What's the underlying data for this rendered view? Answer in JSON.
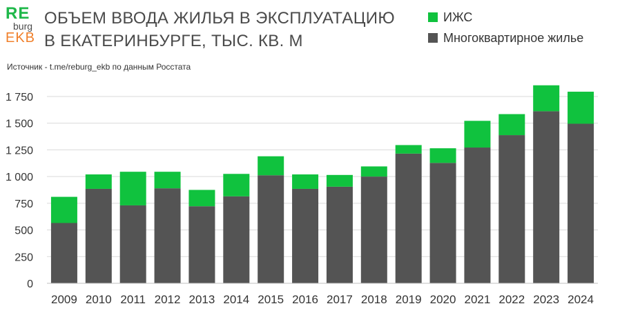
{
  "logo": {
    "line1": "RE",
    "line2": "burg",
    "line3": "EKB"
  },
  "title_line1": "ОБЪЕМ ВВОДА ЖИЛЬЯ В ЭКСПЛУАТАЦИЮ",
  "title_line2": "В ЕКАТЕРИНБУРГЕ, ТЫС. КВ. М",
  "source": "Источник - t.me/reburg_ekb по данным Росстата",
  "colors": {
    "green": "#10c23e",
    "gray": "#545454",
    "brand_green": "#1fb84a",
    "brand_orange": "#f07f2a",
    "grid": "#d9d9d9"
  },
  "chart_data": {
    "type": "bar",
    "stacked": true,
    "categories": [
      "2009",
      "2010",
      "2011",
      "2012",
      "2013",
      "2014",
      "2015",
      "2016",
      "2017",
      "2018",
      "2019",
      "2020",
      "2021",
      "2022",
      "2023",
      "2024"
    ],
    "series": [
      {
        "name": "Многоквартирное жилье",
        "color": "#545454",
        "values": [
          565,
          885,
          730,
          890,
          722,
          815,
          1012,
          885,
          905,
          1000,
          1215,
          1128,
          1272,
          1388,
          1612,
          1495
        ]
      },
      {
        "name": "ИЖС",
        "color": "#10c23e",
        "values": [
          245,
          135,
          315,
          155,
          153,
          210,
          178,
          135,
          110,
          95,
          80,
          137,
          250,
          197,
          243,
          300
        ]
      }
    ],
    "y_ticks": [
      "0",
      "250",
      "500",
      "750",
      "1 000",
      "1 250",
      "1 500",
      "1 750"
    ],
    "ylim": [
      0,
      1750
    ],
    "grid": true,
    "legend": "top-right"
  }
}
